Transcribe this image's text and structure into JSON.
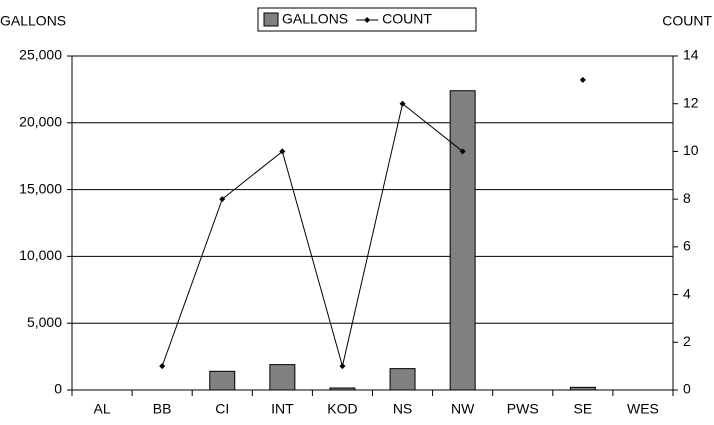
{
  "chart_data": {
    "type": "bar",
    "y_label": "GALLONS",
    "y2_label": "COUNT",
    "categories": [
      "AL",
      "BB",
      "CI",
      "INT",
      "KOD",
      "NS",
      "NW",
      "PWS",
      "SE",
      "WES"
    ],
    "series": [
      {
        "name": "GALLONS",
        "type": "bar",
        "color": "#808080",
        "values": [
          0,
          0,
          1400,
          1900,
          150,
          1600,
          22400,
          0,
          200,
          0
        ]
      },
      {
        "name": "COUNT",
        "type": "line",
        "axis": "y2",
        "color": "#000000",
        "values": [
          null,
          1,
          8,
          10,
          1,
          12,
          10,
          null,
          13,
          null
        ]
      }
    ],
    "ylim": [
      0,
      25000
    ],
    "yticks": [
      0,
      {
        "value": 5000,
        "label": "5,000"
      },
      {
        "value": 10000,
        "label": "10,000"
      },
      {
        "value": 15000,
        "label": "15,000"
      },
      {
        "value": 20000,
        "label": "20,000"
      },
      {
        "value": 25000,
        "label": "25,000"
      }
    ],
    "y2lim": [
      0,
      14
    ],
    "y2ticks": [
      0,
      2,
      4,
      6,
      8,
      10,
      12,
      14
    ],
    "grid": true,
    "legend": "top"
  }
}
